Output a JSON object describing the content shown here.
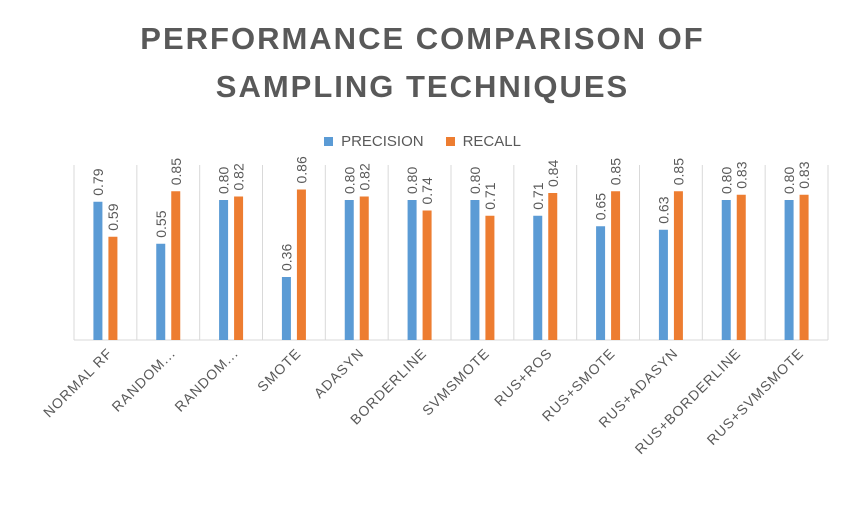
{
  "chart_data": {
    "type": "bar",
    "title": "PERFORMANCE COMPARISON OF SAMPLING TECHNIQUES",
    "title_lines": [
      "PERFORMANCE COMPARISON OF",
      "SAMPLING TECHNIQUES"
    ],
    "categories": [
      "NORMAL RF",
      "RANDOM...",
      "RANDOM...",
      "SMOTE",
      "ADASYN",
      "BORDERLINE",
      "SVMSMOTE",
      "RUS+ROS",
      "RUS+SMOTE",
      "RUS+ADASYN",
      "RUS+BORDERLINE",
      "RUS+SVMSMOTE"
    ],
    "series": [
      {
        "name": "PRECISION",
        "color": "#5B9BD5",
        "values": [
          0.79,
          0.55,
          0.8,
          0.36,
          0.8,
          0.8,
          0.8,
          0.71,
          0.65,
          0.63,
          0.8,
          0.8
        ],
        "labels": [
          "0.79",
          "0.55",
          "0.80",
          "0.36",
          "0.80",
          "0.80",
          "0.80",
          "0.71",
          "0.65",
          "0.63",
          "0.80",
          "0.80"
        ]
      },
      {
        "name": "RECALL",
        "color": "#ED7D31",
        "values": [
          0.59,
          0.85,
          0.82,
          0.86,
          0.82,
          0.74,
          0.71,
          0.84,
          0.85,
          0.85,
          0.83,
          0.83
        ],
        "labels": [
          "0.59",
          "0.85",
          "0.82",
          "0.86",
          "0.82",
          "0.74",
          "0.71",
          "0.84",
          "0.85",
          "0.85",
          "0.83",
          "0.83"
        ]
      }
    ],
    "ylim": [
      0,
      1
    ],
    "grid": "vertical category separators",
    "legend_position": "top"
  }
}
